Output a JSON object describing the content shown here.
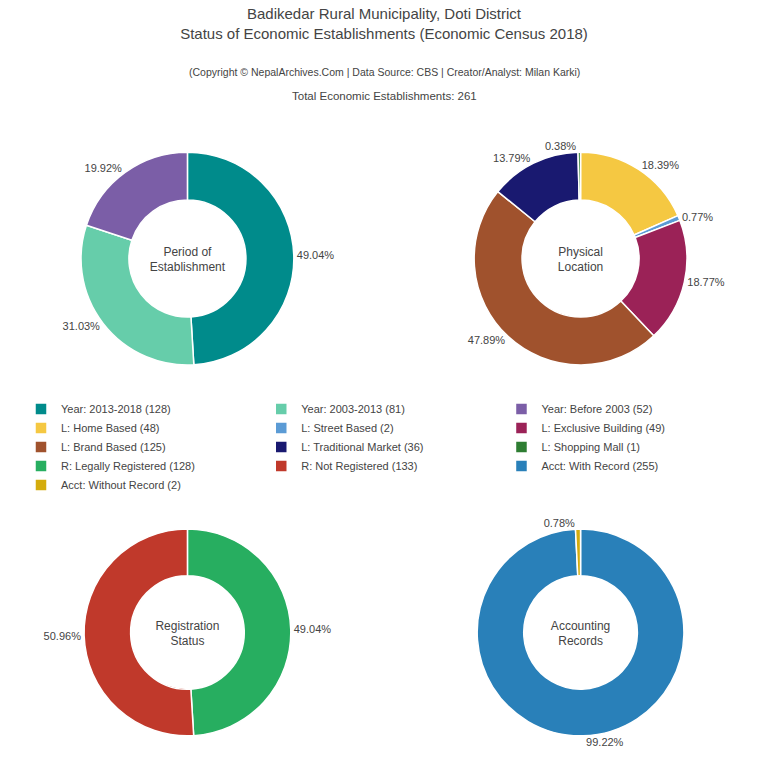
{
  "title": "Badikedar Rural Municipality, Doti District\nStatus of Economic Establishments (Economic Census 2018)",
  "subtitle": "(Copyright © NepalArchives.Com | Data Source: CBS | Creator/Analyst: Milan Karki)\nTotal Economic Establishments: 261",
  "legend": "center",
  "chart_data": [
    {
      "type": "pie",
      "title": "Period of\nEstablishment",
      "categories": [
        "Year: 2013-2018 (128)",
        "Year: 2003-2013 (81)",
        "Year: Before 2003 (52)"
      ],
      "values": [
        49.04,
        31.03,
        19.92
      ],
      "value_labels": [
        "49.04%",
        "31.03%",
        "19.92%"
      ],
      "colors": [
        "#008b8b",
        "#66cdaa",
        "#7b5ea7"
      ],
      "data_labels": true
    },
    {
      "type": "pie",
      "title": "Physical\nLocation",
      "categories": [
        "L: Home Based (48)",
        "L: Street Based (2)",
        "L: Exclusive Building (49)",
        "L: Brand Based (125)",
        "L: Traditional Market (36)",
        "L: Shopping Mall (1)"
      ],
      "values": [
        18.39,
        0.77,
        18.77,
        47.89,
        13.79,
        0.38
      ],
      "value_labels": [
        "18.39%",
        "0.77%",
        "18.77%",
        "47.89%",
        "13.79%",
        "0.38%"
      ],
      "colors": [
        "#f5c842",
        "#5b9bd5",
        "#9b2257",
        "#a0522d",
        "#191970",
        "#2e7d32"
      ],
      "data_labels": true
    },
    {
      "type": "pie",
      "title": "Registration\nStatus",
      "categories": [
        "R: Legally Registered (128)",
        "R: Not Registered (133)"
      ],
      "values": [
        49.04,
        50.96
      ],
      "value_labels": [
        "49.04%",
        "50.96%"
      ],
      "colors": [
        "#27ae60",
        "#c0392b"
      ],
      "data_labels": true
    },
    {
      "type": "pie",
      "title": "Accounting\nRecords",
      "categories": [
        "Acct: With Record (255)",
        "Acct: Without Record (2)"
      ],
      "values": [
        99.22,
        0.78
      ],
      "value_labels": [
        "99.22%",
        "0.78%"
      ],
      "colors": [
        "#2980b9",
        "#d4ac0d"
      ],
      "data_labels": true
    }
  ]
}
